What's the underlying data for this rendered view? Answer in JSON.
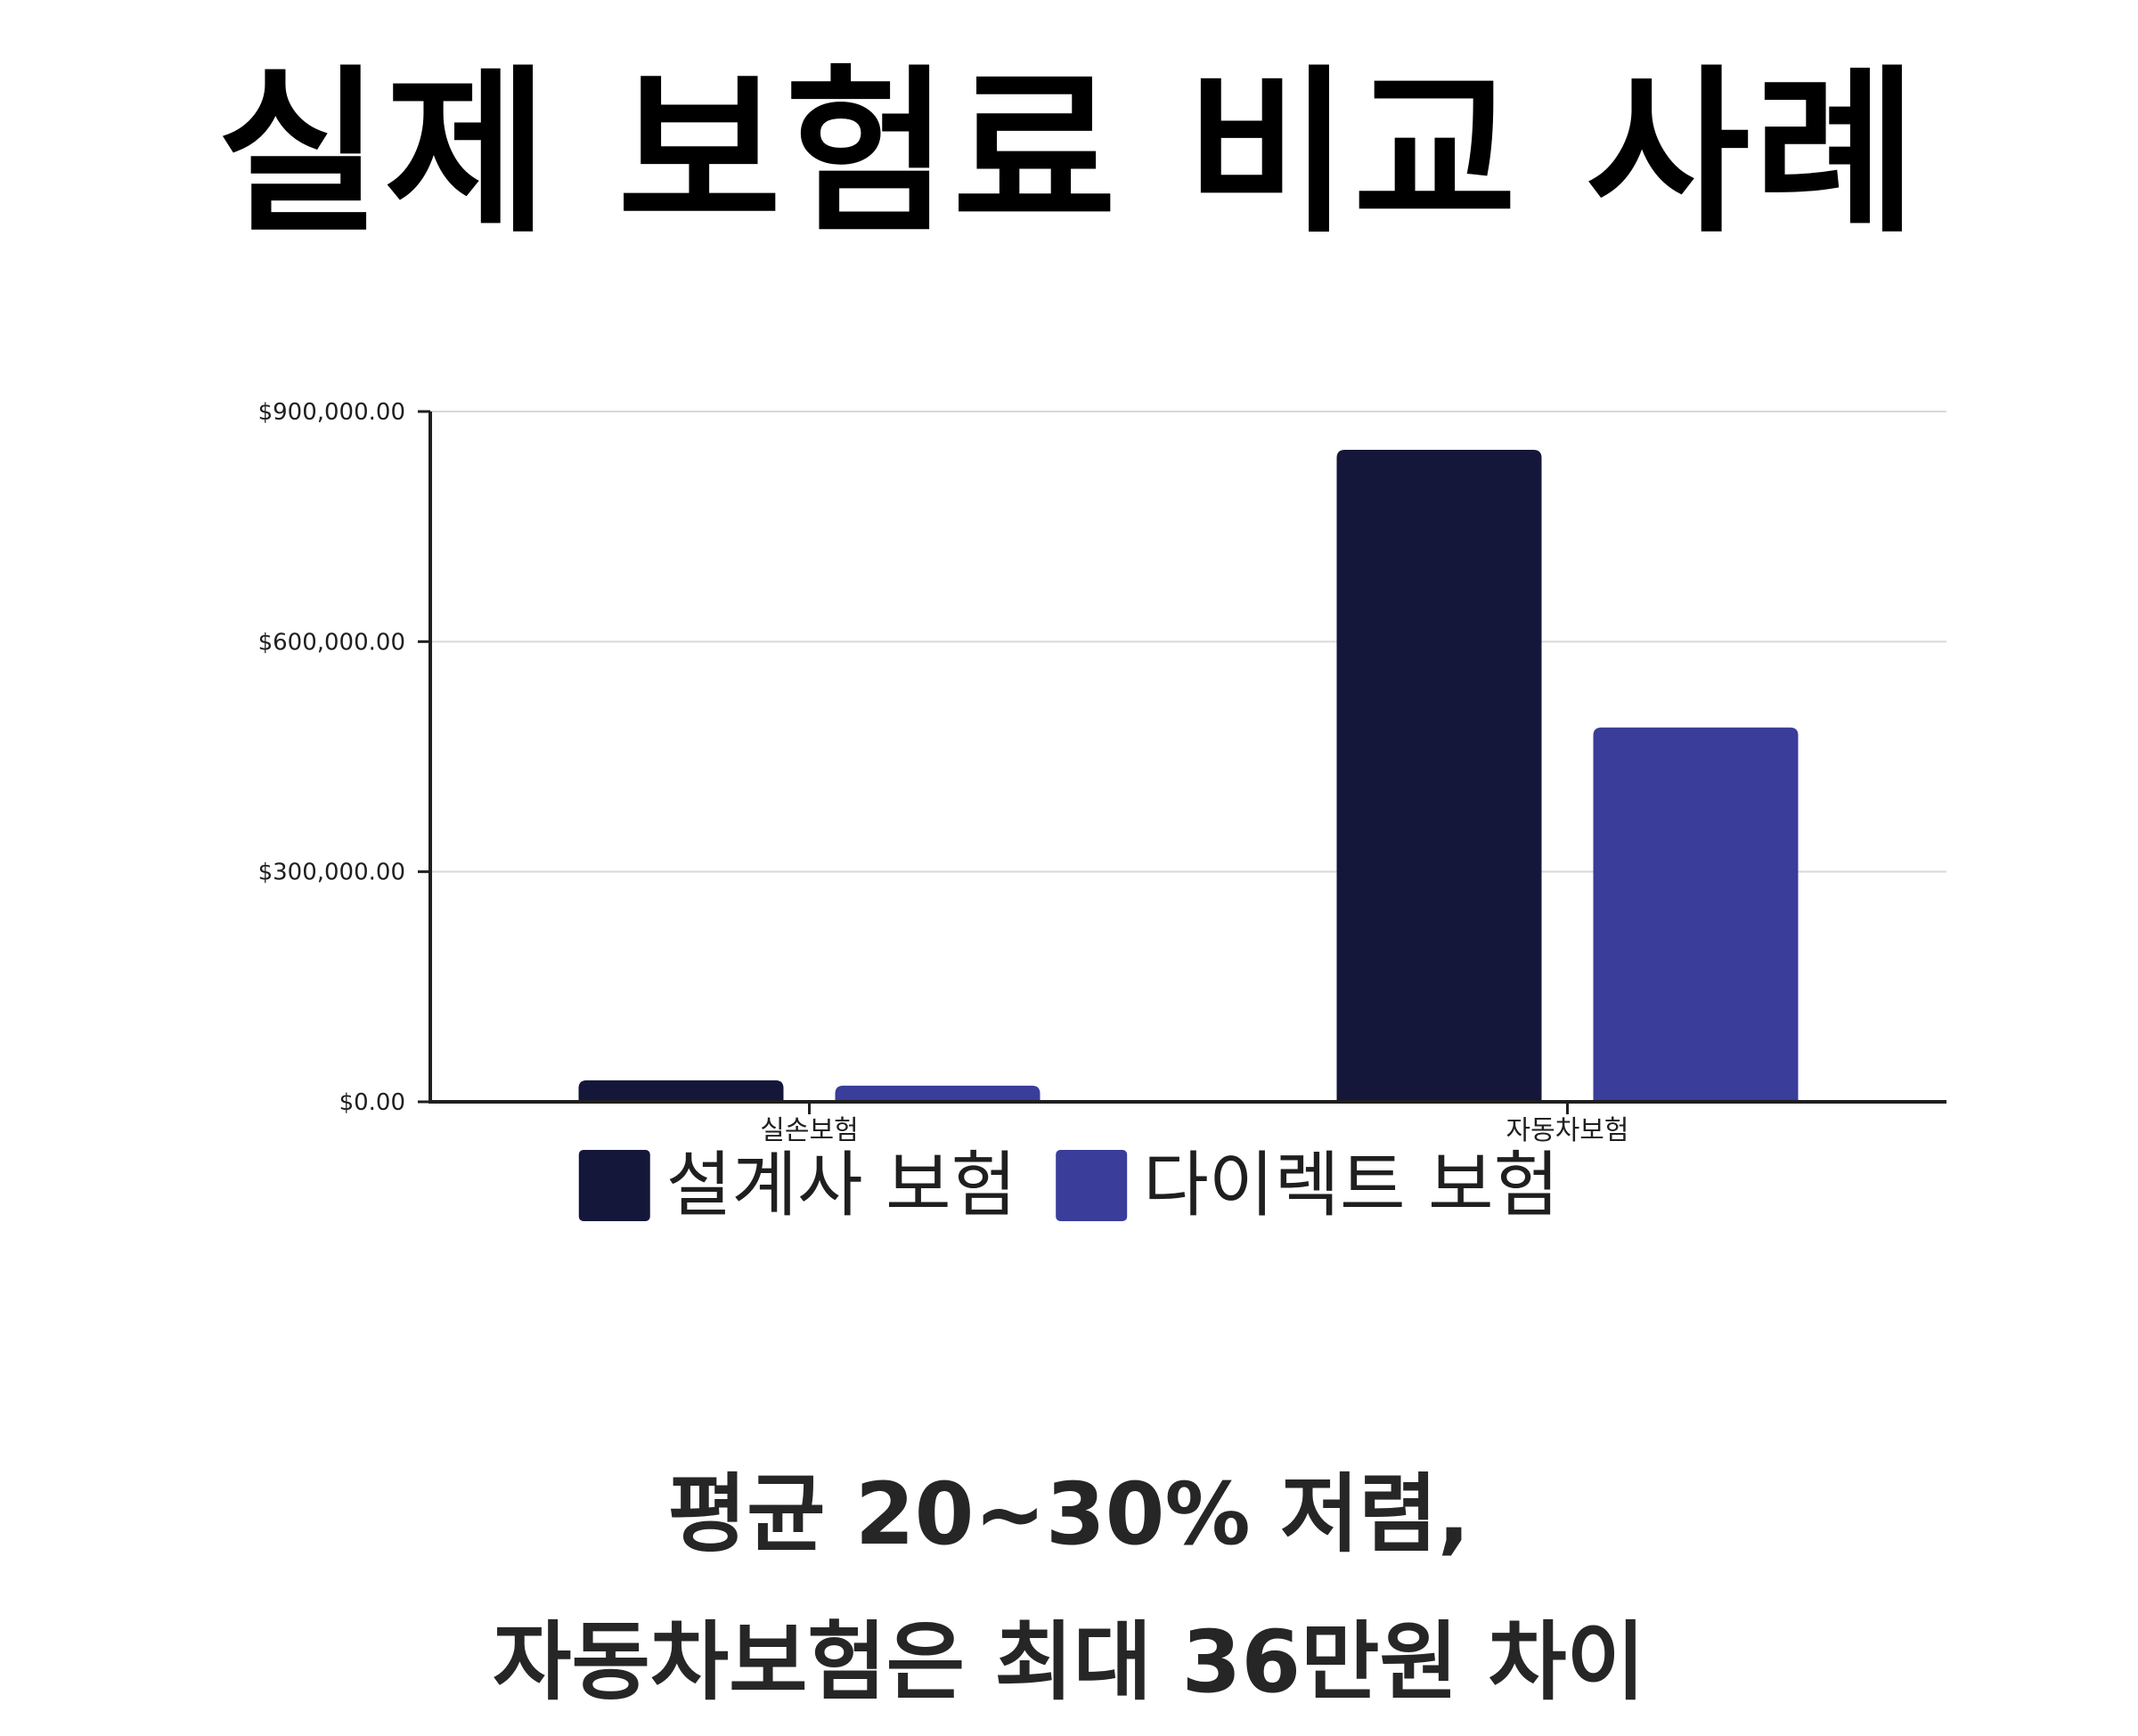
{
  "page": {
    "title": "실제 보험료 비교 사례",
    "caption_line1": "평균 20~30% 저렴,",
    "caption_line2": "자동차보험은 최대 36만원 차이"
  },
  "chart_data": {
    "type": "bar",
    "title": "",
    "xlabel": "",
    "ylabel": "",
    "categories": [
      "실손보험",
      "자동차보험"
    ],
    "series": [
      {
        "name": "설계사 보험",
        "values": [
          28000,
          850000
        ],
        "color": "#15173a"
      },
      {
        "name": "다이렉트 보험",
        "values": [
          21000,
          488000
        ],
        "color": "#3a3d99"
      }
    ],
    "ylim": [
      0,
      900000
    ],
    "yticks": [
      0,
      300000,
      600000,
      900000
    ],
    "ytick_labels": [
      "$0.00",
      "$300,000.00",
      "$600,000.00",
      "$900,000.00"
    ],
    "grid": true,
    "legend": "bottom"
  }
}
